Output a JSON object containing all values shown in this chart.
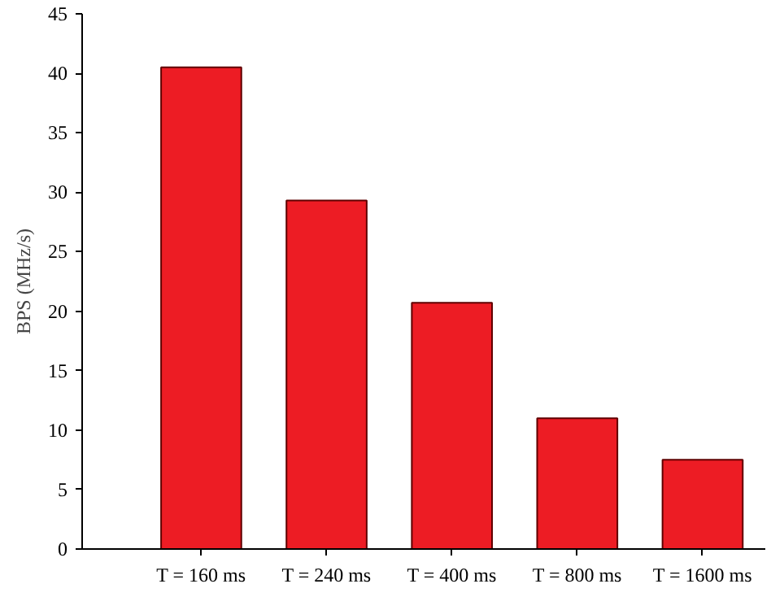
{
  "chart_data": {
    "type": "bar",
    "ylabel": "BPS (MHz/s)",
    "categories": [
      "T = 160 ms",
      "T = 240 ms",
      "T = 400 ms",
      "T = 800 ms",
      "T = 1600 ms"
    ],
    "values": [
      40.5,
      29.3,
      20.7,
      11,
      7.5
    ],
    "color": "#ed1c24",
    "ylim": [
      0,
      45
    ],
    "yticks": [
      0,
      5,
      10,
      15,
      20,
      25,
      30,
      35,
      40,
      45
    ],
    "grid": false
  }
}
